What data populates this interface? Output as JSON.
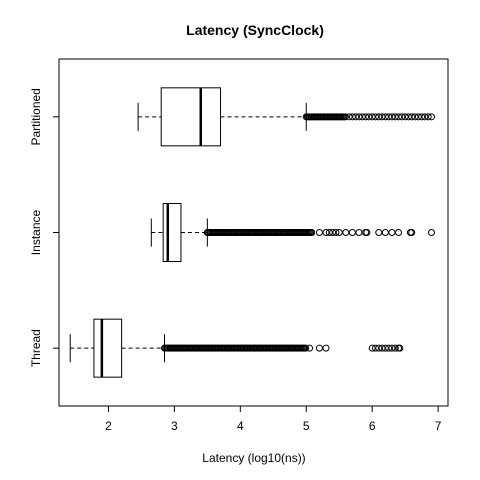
{
  "chart_data": {
    "type": "boxplot",
    "orientation": "horizontal",
    "title": "Latency (SyncClock)",
    "xlabel": "Latency (log10(ns))",
    "ylabel": "",
    "xlim": [
      1.25,
      7.15
    ],
    "x_ticks": [
      "2",
      "3",
      "4",
      "5",
      "6",
      "7"
    ],
    "grid": false,
    "legend": "none",
    "series": [
      {
        "name": "Thread",
        "whisker_low": 1.42,
        "q1": 1.78,
        "median": 1.9,
        "q3": 2.2,
        "whisker_high": 2.85,
        "outlier_dense_start": 2.85,
        "outlier_dense_end": 5.0,
        "outliers": [
          5.05,
          5.2,
          5.3,
          6.0,
          6.05,
          6.1,
          6.15,
          6.2,
          6.25,
          6.3,
          6.35,
          6.4,
          6.42
        ]
      },
      {
        "name": "Instance",
        "whisker_low": 2.65,
        "q1": 2.83,
        "median": 2.9,
        "q3": 3.1,
        "whisker_high": 3.5,
        "outlier_dense_start": 3.5,
        "outlier_dense_end": 5.1,
        "outliers": [
          5.2,
          5.3,
          5.35,
          5.4,
          5.45,
          5.5,
          5.6,
          5.7,
          5.8,
          5.9,
          5.92,
          6.1,
          6.2,
          6.3,
          6.4,
          6.58,
          6.6,
          6.9
        ]
      },
      {
        "name": "Partitioned",
        "whisker_low": 2.45,
        "q1": 2.8,
        "median": 3.4,
        "q3": 3.7,
        "whisker_high": 5.0,
        "outlier_dense_start": 5.0,
        "outlier_dense_end": 5.6,
        "outliers": [
          5.65,
          5.7,
          5.75,
          5.8,
          5.85,
          5.9,
          5.95,
          6.0,
          6.05,
          6.1,
          6.15,
          6.2,
          6.25,
          6.3,
          6.35,
          6.4,
          6.45,
          6.5,
          6.55,
          6.6,
          6.65,
          6.7,
          6.75,
          6.8,
          6.85,
          6.9
        ]
      }
    ]
  }
}
